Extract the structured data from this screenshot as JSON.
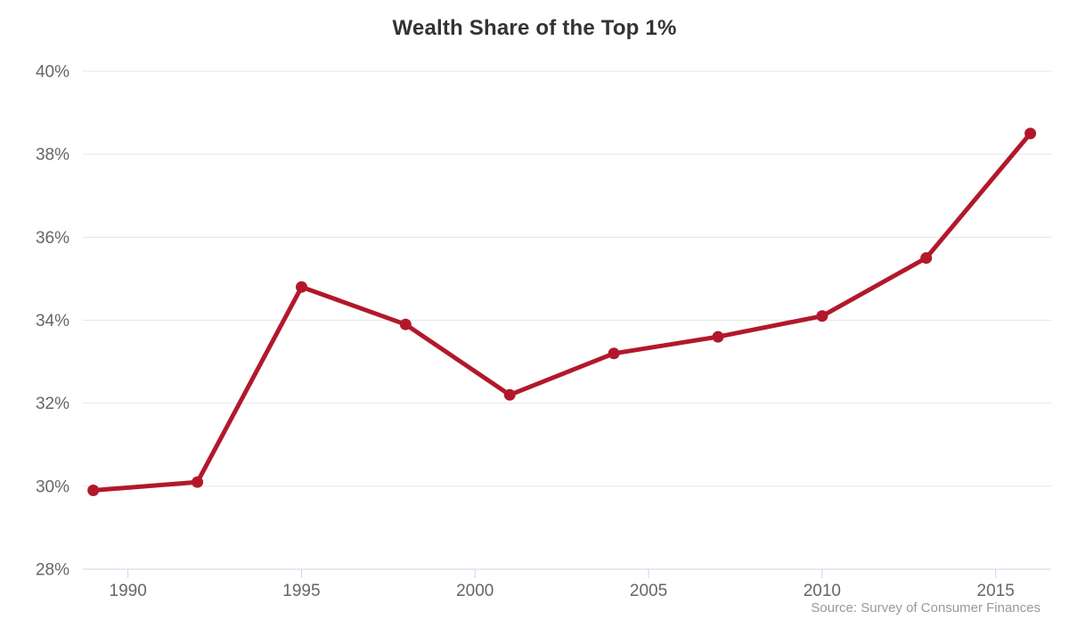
{
  "chart_data": {
    "type": "line",
    "title": "Wealth Share of the Top 1%",
    "source": "Source: Survey of Consumer Finances",
    "x": [
      1989,
      1992,
      1995,
      1998,
      2001,
      2004,
      2007,
      2010,
      2013,
      2016
    ],
    "series": [
      {
        "name": "Wealth share of the top 1%",
        "values": [
          29.9,
          30.1,
          34.8,
          33.9,
          32.2,
          33.2,
          33.6,
          34.1,
          35.5,
          38.5
        ]
      }
    ],
    "xlim": [
      1988.7,
      2016.6
    ],
    "ylim": [
      28,
      40
    ],
    "xticks": [
      1990,
      1995,
      2000,
      2005,
      2010,
      2015
    ],
    "yticks": [
      28,
      30,
      32,
      34,
      36,
      38,
      40
    ],
    "ytick_suffix": "%",
    "grid": true,
    "legend": false,
    "xlabel": "",
    "ylabel": "",
    "colors": {
      "line": "#b2182b",
      "marker": "#b2182b",
      "grid": "#e6e6e6",
      "axis": "#ccd6eb",
      "title": "#333333",
      "tick_label": "#666666",
      "source": "#999999"
    }
  }
}
